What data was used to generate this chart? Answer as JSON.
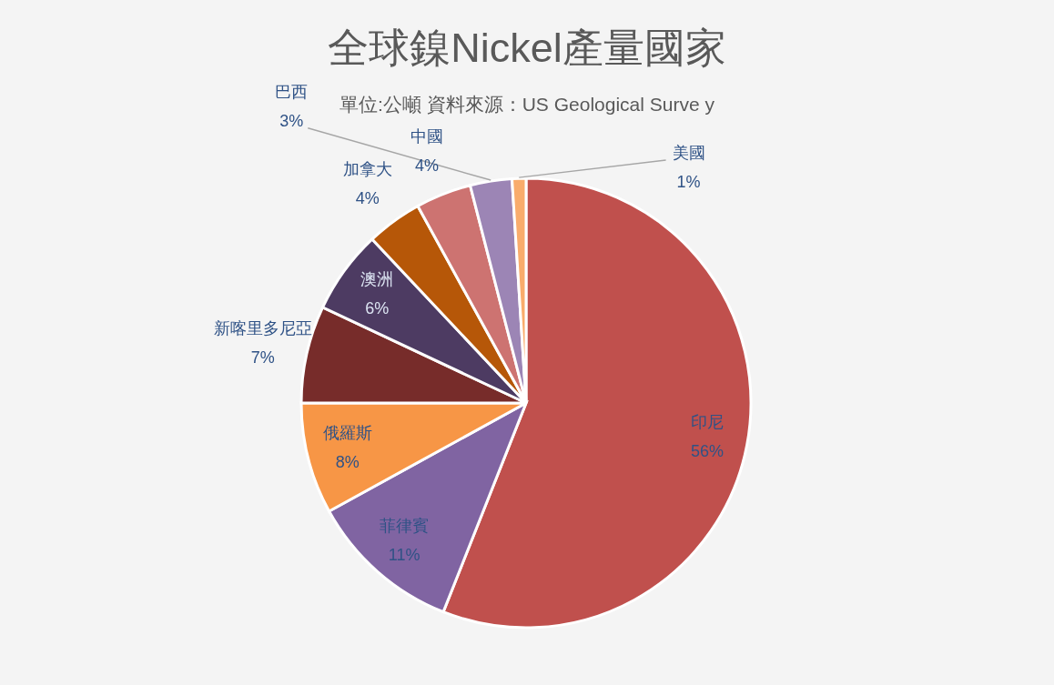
{
  "chart_data": {
    "type": "pie",
    "title": "全球鎳Nickel產量國家",
    "subtitle": "單位:公噸 資料來源：US Geological Surve y",
    "categories": [
      "印尼",
      "菲律賓",
      "俄羅斯",
      "新喀里多尼亞",
      "澳洲",
      "加拿大",
      "中國",
      "巴西",
      "美國"
    ],
    "values": [
      56,
      11,
      8,
      7,
      6,
      4,
      4,
      3,
      1
    ],
    "colors": [
      "#c0504d",
      "#8064a2",
      "#f79646",
      "#772c2a",
      "#4d3b62",
      "#b65708",
      "#cd7371",
      "#9c85b5",
      "#f9ac6c"
    ],
    "value_labels": [
      "56%",
      "11%",
      "8%",
      "7%",
      "6%",
      "4%",
      "4%",
      "3%",
      "1%"
    ]
  }
}
